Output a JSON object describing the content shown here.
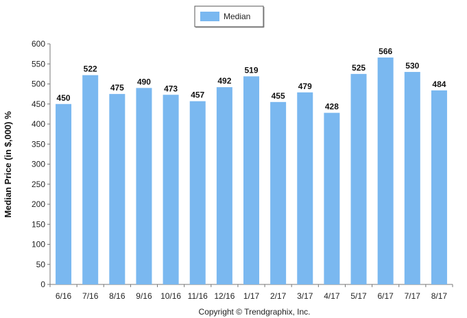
{
  "chart_data": {
    "type": "bar",
    "categories": [
      "6/16",
      "7/16",
      "8/16",
      "9/16",
      "10/16",
      "11/16",
      "12/16",
      "1/17",
      "2/17",
      "3/17",
      "4/17",
      "5/17",
      "6/17",
      "7/17",
      "8/17"
    ],
    "series": [
      {
        "name": "Median",
        "values": [
          450,
          522,
          475,
          490,
          473,
          457,
          492,
          519,
          455,
          479,
          428,
          525,
          566,
          530,
          484
        ]
      }
    ],
    "ylabel": "Median Price (in $,000) %",
    "xlabel": "",
    "ylim": [
      0,
      600
    ],
    "yticks": [
      0,
      50,
      100,
      150,
      200,
      250,
      300,
      350,
      400,
      450,
      500,
      550,
      600
    ],
    "legend": {
      "position": "top-center",
      "entries": [
        "Median"
      ]
    },
    "grid": false,
    "bar_color": "#7ab8f0",
    "copyright": "Copyright © Trendgraphix, Inc."
  }
}
